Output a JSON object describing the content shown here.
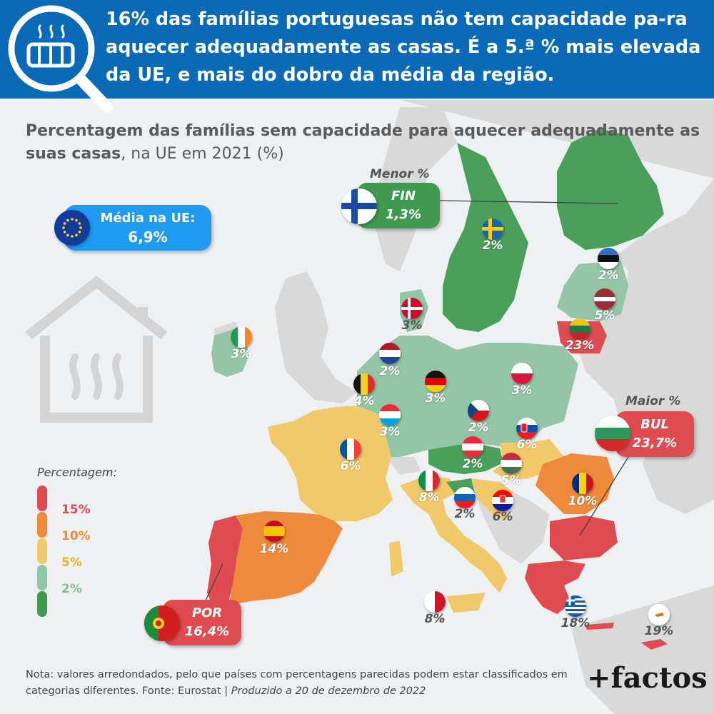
{
  "header": {
    "title": "16% das famílias portuguesas não tem capacidade pa-ra aquecer adequadamente as casas. É a 5.ª % mais elevada da UE, e mais do dobro da média da região.",
    "icon": "radiator-magnifier-icon"
  },
  "subtitle": {
    "bold": "Percentagem das famílias sem capacidade para aquecer adequadamente as suas casas",
    "rest": ", na UE em 2021 (%)"
  },
  "average": {
    "label": "Média na UE:",
    "value": "6,9%",
    "icon": "eu-flag-icon"
  },
  "min": {
    "tag": "Menor %",
    "code": "FIN",
    "value": "1,3%"
  },
  "max": {
    "tag": "Maior %",
    "code": "BUL",
    "value": "23,7%"
  },
  "portugal": {
    "code": "POR",
    "value": "16,4%"
  },
  "legend": {
    "title": "Percentagem:",
    "items": [
      {
        "label": "15%",
        "color": "#de4b50"
      },
      {
        "label": "10%",
        "color": "#ef8a3c"
      },
      {
        "label": "5%",
        "color": "#f1c96a"
      },
      {
        "label": "2%",
        "color": "#8fc7a4"
      },
      {
        "label": "",
        "color": "#3d9a4e"
      }
    ]
  },
  "colors": {
    "red": "#de4b50",
    "orange": "#ef8a3c",
    "yellow": "#f1c96a",
    "lightgreen": "#93c5a6",
    "darkgreen": "#48a05a",
    "nonEU": "#d9d9d9",
    "header": "#0a6ab8"
  },
  "countries": [
    {
      "name": "Suécia",
      "value": "2%",
      "flag": "se"
    },
    {
      "name": "Estónia",
      "value": "2%",
      "flag": "ee"
    },
    {
      "name": "Letónia",
      "value": "5%",
      "flag": "lv"
    },
    {
      "name": "Lituânia",
      "value": "23%",
      "flag": "lt"
    },
    {
      "name": "Dinamarca",
      "value": "3%",
      "flag": "dk"
    },
    {
      "name": "Irlanda",
      "value": "3%",
      "flag": "ie"
    },
    {
      "name": "Países Baixos",
      "value": "2%",
      "flag": "nl"
    },
    {
      "name": "Bélgica",
      "value": "4%",
      "flag": "be"
    },
    {
      "name": "Alemanha",
      "value": "3%",
      "flag": "de"
    },
    {
      "name": "Polónia",
      "value": "3%",
      "flag": "pl"
    },
    {
      "name": "Luxemburgo",
      "value": "3%",
      "flag": "lu"
    },
    {
      "name": "Chéquia",
      "value": "2%",
      "flag": "cz"
    },
    {
      "name": "Eslováquia",
      "value": "6%",
      "flag": "sk"
    },
    {
      "name": "França",
      "value": "6%",
      "flag": "fr"
    },
    {
      "name": "Áustria",
      "value": "2%",
      "flag": "at"
    },
    {
      "name": "Hungria",
      "value": "5%",
      "flag": "hu"
    },
    {
      "name": "Itália",
      "value": "8%",
      "flag": "it"
    },
    {
      "name": "Eslovénia",
      "value": "2%",
      "flag": "si"
    },
    {
      "name": "Croácia",
      "value": "6%",
      "flag": "hr"
    },
    {
      "name": "Roménia",
      "value": "10%",
      "flag": "ro"
    },
    {
      "name": "Espanha",
      "value": "14%",
      "flag": "es"
    },
    {
      "name": "Malta",
      "value": "8%",
      "flag": "mt"
    },
    {
      "name": "Grécia",
      "value": "18%",
      "flag": "gr"
    },
    {
      "name": "Chipre",
      "value": "19%",
      "flag": "cy"
    }
  ],
  "house_icon": "house-heat-icon",
  "note": {
    "text": "Nota: valores arredondados, pelo que países com percentagens parecidas podem estar classificados em categorias diferentes. Fonte: Eurostat | ",
    "italic": "Produzido a 20 de dezembro de 2022"
  },
  "brand": "+factos"
}
